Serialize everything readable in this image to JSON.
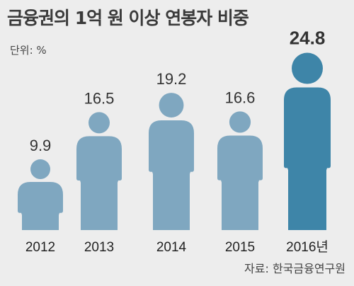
{
  "title": "금융권의 1억 원 이상 연봉자 비중",
  "unit_label": "단위: %",
  "source": "자료: 한국금융연구원",
  "colors": {
    "person": "#7fa7c0",
    "highlight": "#3e85a8",
    "background": "#ededed"
  },
  "chart_data": {
    "type": "bar",
    "mark": "person-icon",
    "categories": [
      "2012",
      "2013",
      "2014",
      "2015",
      "2016년"
    ],
    "values": [
      9.9,
      16.5,
      19.2,
      16.6,
      24.8
    ],
    "value_labels": [
      "9.9",
      "16.5",
      "19.2",
      "16.6",
      "24.8"
    ],
    "highlight_index": 4,
    "title": "금융권의 1억 원 이상 연봉자 비중",
    "unit": "%"
  }
}
